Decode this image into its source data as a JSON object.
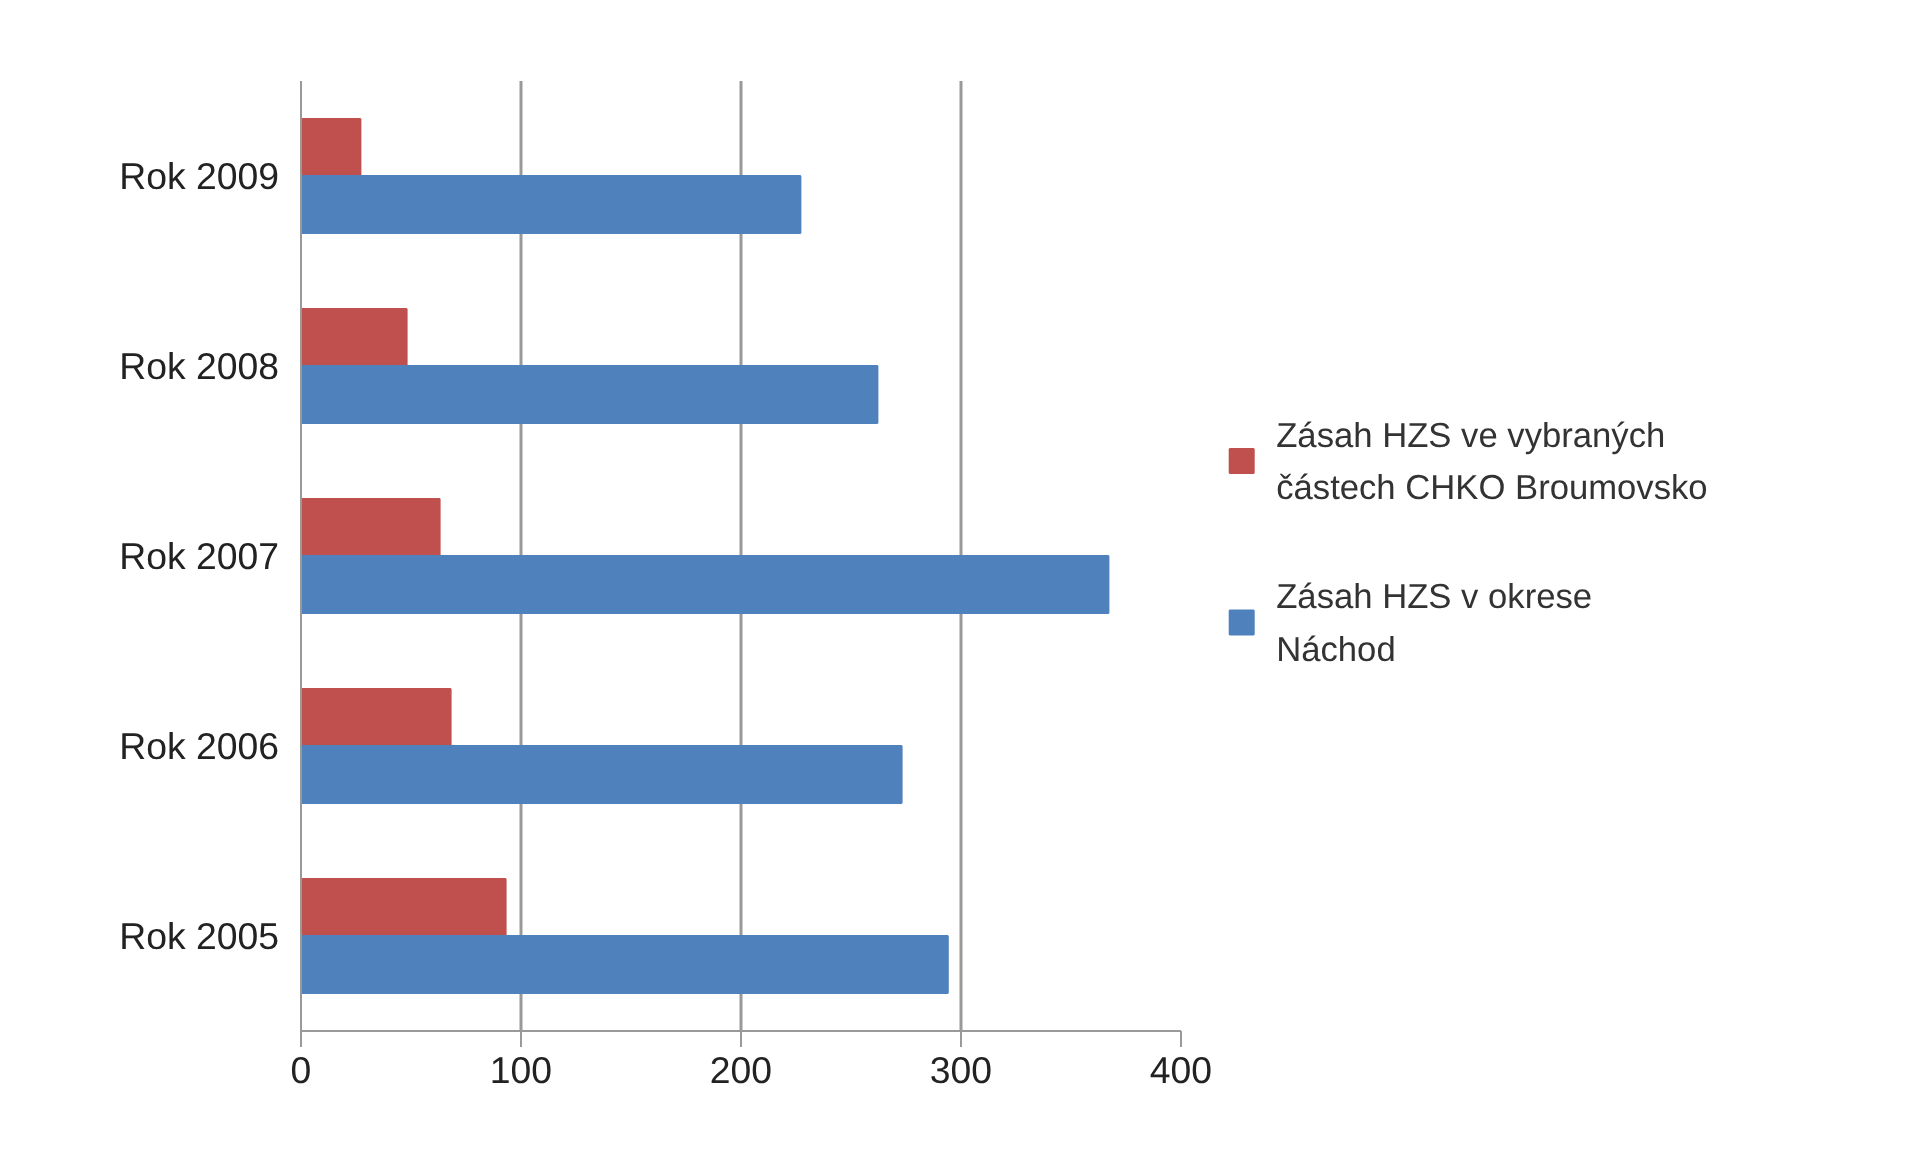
{
  "chart_data": {
    "type": "bar",
    "orientation": "horizontal",
    "categories": [
      "Rok 2009",
      "Rok 2008",
      "Rok 2007",
      "Rok 2006",
      "Rok 2005"
    ],
    "series": [
      {
        "name": "Zásah HZS ve vybraných částech CHKO Broumovsko",
        "color": "#c0504d",
        "values": [
          27,
          48,
          63,
          68,
          93
        ]
      },
      {
        "name": "Zásah HZS v okrese Náchod",
        "color": "#4f81bd",
        "values": [
          227,
          262,
          367,
          273,
          294
        ]
      }
    ],
    "xlim": [
      0,
      400
    ],
    "xticks": [
      0,
      100,
      200,
      300,
      400
    ],
    "grid": "x",
    "legend": "right"
  }
}
